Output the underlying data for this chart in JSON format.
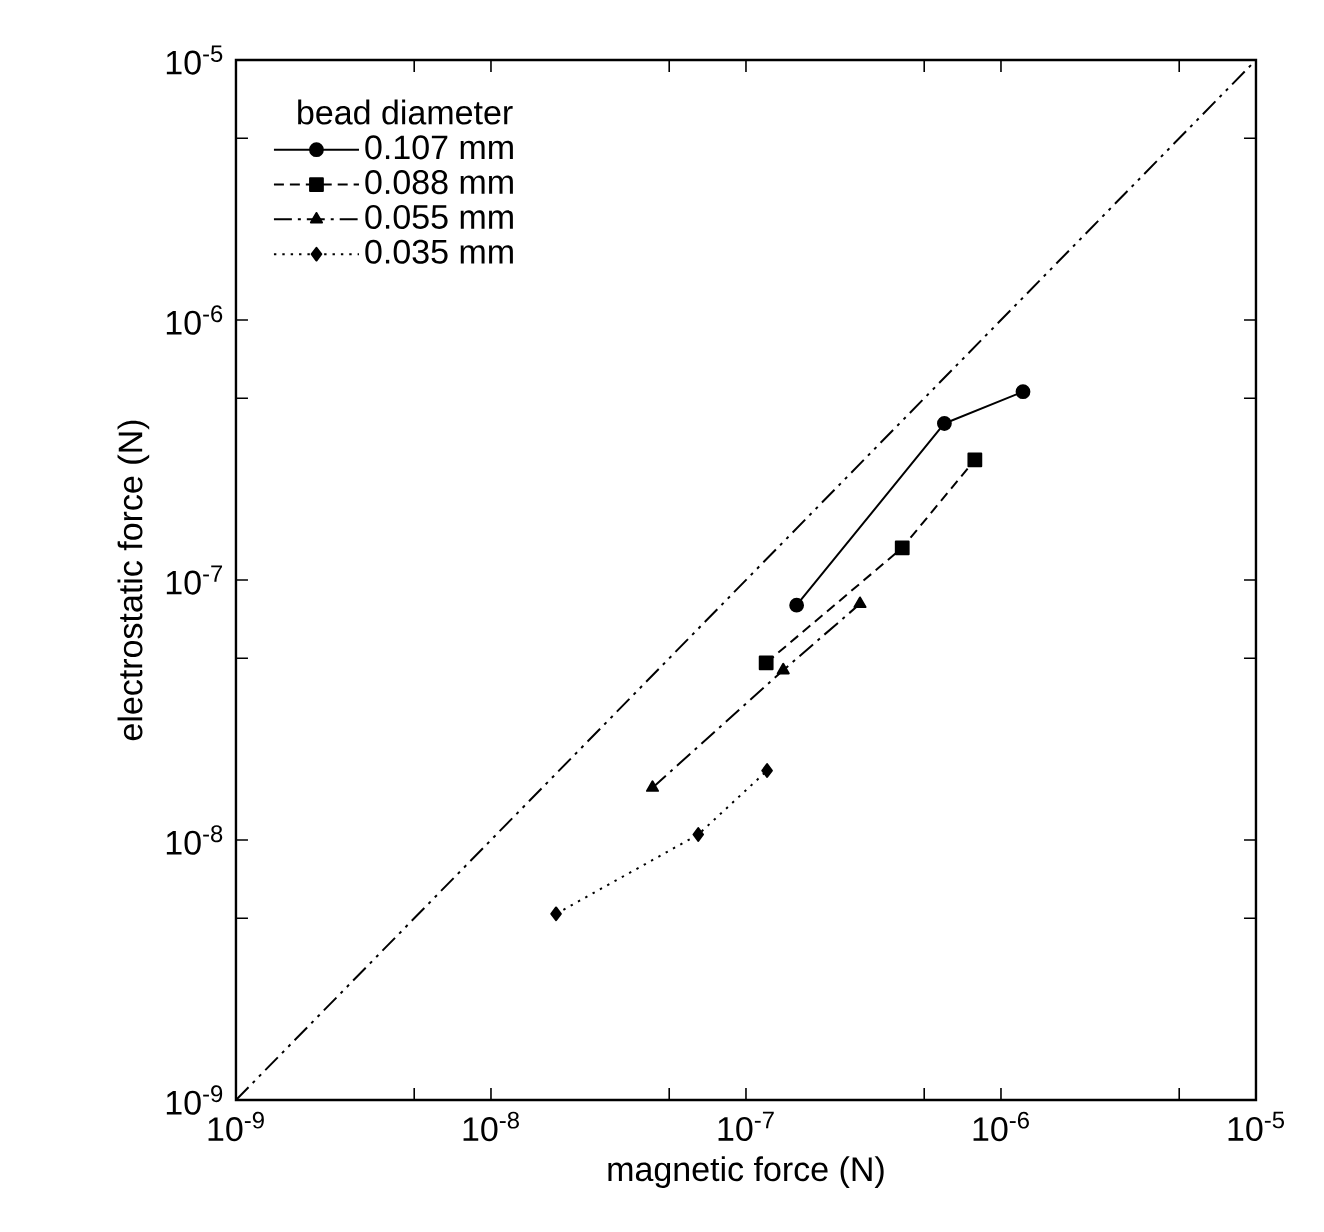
{
  "chart_data": {
    "type": "line",
    "xlabel": "magnetic force (N)",
    "ylabel": "electrostatic force (N)",
    "legend_title": "bead diameter",
    "legend": "top left",
    "log": "xy",
    "grid": false,
    "xlim": [
      1e-09,
      1e-05
    ],
    "ylim": [
      1e-09,
      1e-05
    ],
    "xticks": [
      {
        "value": 1e-09,
        "label": "10$^{-9}$"
      },
      {
        "value": 5e-09,
        "label": null
      },
      {
        "value": 1e-08,
        "label": "10$^{-8}$"
      },
      {
        "value": 5e-08,
        "label": null
      },
      {
        "value": 1e-07,
        "label": "10$^{-7}$"
      },
      {
        "value": 5e-07,
        "label": null
      },
      {
        "value": 1e-06,
        "label": "10$^{-6}$"
      },
      {
        "value": 5e-06,
        "label": null
      },
      {
        "value": 1e-05,
        "label": "10$^{-5}$"
      }
    ],
    "yticks": [
      {
        "value": 1e-09,
        "label": "10$^{-9}$"
      },
      {
        "value": 5e-09,
        "label": null
      },
      {
        "value": 1e-08,
        "label": "10$^{-8}$"
      },
      {
        "value": 5e-08,
        "label": null
      },
      {
        "value": 1e-07,
        "label": "10$^{-7}$"
      },
      {
        "value": 5e-07,
        "label": null
      },
      {
        "value": 1e-06,
        "label": "10$^{-6}$"
      },
      {
        "value": 5e-06,
        "label": null
      },
      {
        "value": 1e-05,
        "label": "10$^{-5}$"
      }
    ],
    "series": [
      {
        "name": "0.107 mm",
        "color": "#000000",
        "marker": "circle",
        "line_style": "solid",
        "x": [
          1.58e-07,
          6e-07,
          1.22e-06
        ],
        "values": [
          8e-08,
          4e-07,
          5.3e-07
        ]
      },
      {
        "name": "0.088 mm",
        "color": "#000000",
        "marker": "square",
        "line_style": "dashed",
        "x": [
          1.2e-07,
          4.1e-07,
          7.9e-07
        ],
        "values": [
          4.8e-08,
          1.33e-07,
          2.9e-07
        ]
      },
      {
        "name": "0.055 mm",
        "color": "#000000",
        "marker": "triangle",
        "line_style": "dashdot",
        "x": [
          4.3e-08,
          1.4e-07,
          2.8e-07
        ],
        "values": [
          1.59e-08,
          4.5e-08,
          8.1e-08
        ]
      },
      {
        "name": "0.035 mm",
        "color": "#000000",
        "marker": "diamond",
        "line_style": "dotted",
        "x": [
          1.8e-08,
          6.5e-08,
          1.21e-07
        ],
        "values": [
          5.2e-09,
          1.05e-08,
          1.85e-08
        ]
      },
      {
        "color": "#000000",
        "marker": "none",
        "line_style": "dashdotdot",
        "x": [
          1e-09,
          1e-05
        ],
        "values": [
          1e-09,
          1e-05
        ]
      }
    ]
  }
}
